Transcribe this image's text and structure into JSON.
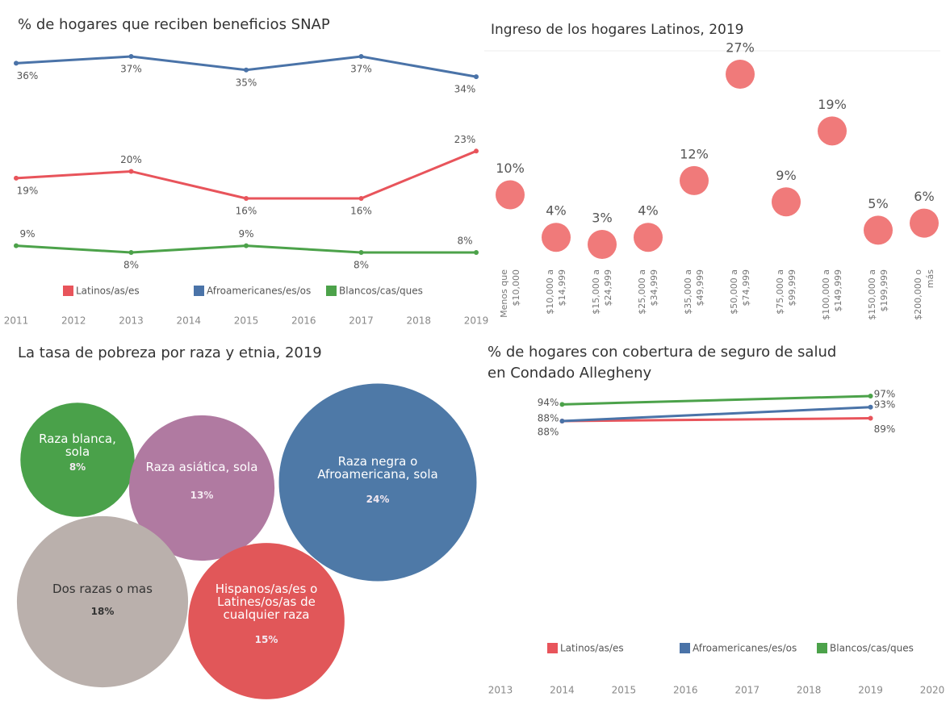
{
  "chart_data": [
    {
      "type": "line",
      "title": "% de hogares que reciben beneficios SNAP",
      "x": [
        2011,
        2013,
        2015,
        2017,
        2019
      ],
      "xlim": [
        2011,
        2019
      ],
      "xticks": [
        2011,
        2012,
        2013,
        2014,
        2015,
        2016,
        2017,
        2018,
        2019
      ],
      "series": [
        {
          "name": "Latinos/as/es",
          "color": "#e8545b",
          "values": [
            19,
            20,
            16,
            16,
            23
          ],
          "value_labels": [
            "19%",
            "20%",
            "16%",
            "16%",
            "23%"
          ]
        },
        {
          "name": "Afroamericanes/es/os",
          "color": "#4a73a8",
          "values": [
            36,
            37,
            35,
            37,
            34
          ],
          "value_labels": [
            "36%",
            "37%",
            "35%",
            "37%",
            "34%"
          ]
        },
        {
          "name": "Blancos/cas/ques",
          "color": "#4ca24a",
          "values": [
            9,
            8,
            9,
            8,
            8
          ],
          "value_labels": [
            "9%",
            "8%",
            "9%",
            "8%",
            "8%"
          ]
        }
      ]
    },
    {
      "type": "scatter",
      "title": "Ingreso de los hogares Latinos, 2019",
      "color": "#f07a7a",
      "categories": [
        "Menos que $10,000",
        "$10,000 a $14,999",
        "$15,000 a $24,999",
        "$25,000 a $34,999",
        "$35,000 a $49,999",
        "$50,000 a $74,999",
        "$75,000 a $99,999",
        "$100,000 a $149,999",
        "$150,000 a $199,999",
        "$200,000 o más"
      ],
      "values": [
        10,
        4,
        3,
        4,
        12,
        27,
        9,
        19,
        5,
        6
      ],
      "value_labels": [
        "10%",
        "4%",
        "3%",
        "4%",
        "12%",
        "27%",
        "9%",
        "19%",
        "5%",
        "6%"
      ]
    },
    {
      "type": "bubble",
      "title": "La tasa de pobreza por raza y etnia, 2019",
      "categories": [
        "Raza blanca, sola",
        "Raza asiática, sola",
        "Raza negra o Afroamericana, sola",
        "Dos razas o mas",
        "Hispanos/as/es o Latines/os/as de cualquier raza"
      ],
      "values": [
        8,
        13,
        24,
        18,
        15
      ],
      "value_labels": [
        "8%",
        "13%",
        "24%",
        "18%",
        "15%"
      ],
      "colors": [
        "#4aa14a",
        "#b07aa1",
        "#4e79a7",
        "#bab0ac",
        "#e15759"
      ]
    },
    {
      "type": "line",
      "title": "% de hogares con cobertura de seguro de salud en Condado Allegheny",
      "x": [
        2014,
        2019
      ],
      "xlim": [
        2013,
        2020
      ],
      "xticks": [
        2013,
        2014,
        2015,
        2016,
        2017,
        2018,
        2019,
        2020
      ],
      "series": [
        {
          "name": "Latinos/as/es",
          "color": "#e8545b",
          "values": [
            88,
            89
          ],
          "value_labels": [
            "88%",
            "89%"
          ]
        },
        {
          "name": "Afroamericanes/es/os",
          "color": "#4a73a8",
          "values": [
            88,
            93
          ],
          "value_labels": [
            "88%",
            "93%"
          ]
        },
        {
          "name": "Blancos/cas/ques",
          "color": "#4ca24a",
          "values": [
            94,
            97
          ],
          "value_labels": [
            "94%",
            "97%"
          ]
        }
      ]
    }
  ]
}
